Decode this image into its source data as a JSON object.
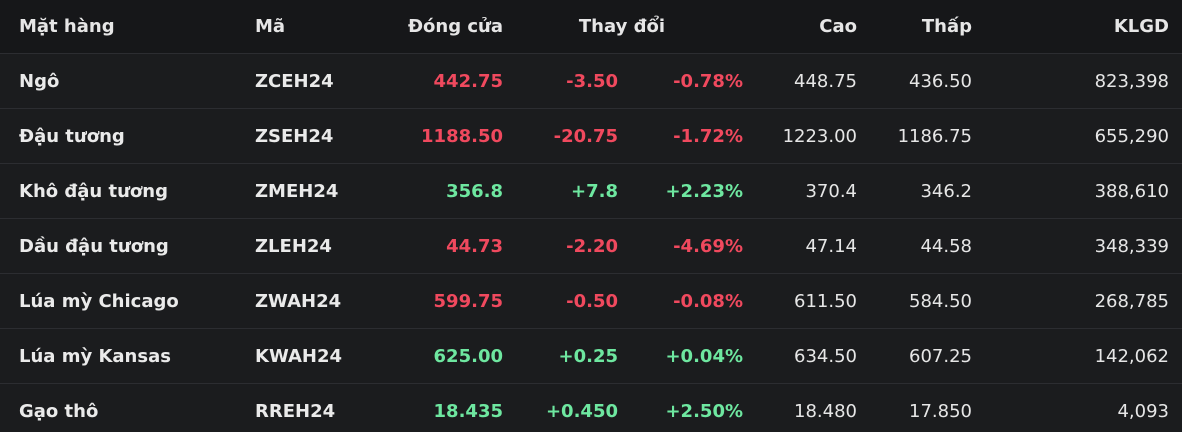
{
  "colors": {
    "up": "#6ee7a0",
    "down": "#f0495e",
    "background": "#1b1c1e",
    "header_background": "#161719"
  },
  "header": {
    "name": "Mặt hàng",
    "code": "Mã",
    "close": "Đóng cửa",
    "change": "Thay đổi",
    "high": "Cao",
    "low": "Thấp",
    "volume": "KLGD"
  },
  "rows": [
    {
      "name": "Ngô",
      "code": "ZCEH24",
      "close": "442.75",
      "chg": "-3.50",
      "pct": "-0.78%",
      "high": "448.75",
      "low": "436.50",
      "vol": "823,398",
      "dir": "down"
    },
    {
      "name": "Đậu tương",
      "code": "ZSEH24",
      "close": "1188.50",
      "chg": "-20.75",
      "pct": "-1.72%",
      "high": "1223.00",
      "low": "1186.75",
      "vol": "655,290",
      "dir": "down"
    },
    {
      "name": "Khô đậu tương",
      "code": "ZMEH24",
      "close": "356.8",
      "chg": "+7.8",
      "pct": "+2.23%",
      "high": "370.4",
      "low": "346.2",
      "vol": "388,610",
      "dir": "up"
    },
    {
      "name": "Dầu đậu tương",
      "code": "ZLEH24",
      "close": "44.73",
      "chg": "-2.20",
      "pct": "-4.69%",
      "high": "47.14",
      "low": "44.58",
      "vol": "348,339",
      "dir": "down"
    },
    {
      "name": "Lúa mỳ Chicago",
      "code": "ZWAH24",
      "close": "599.75",
      "chg": "-0.50",
      "pct": "-0.08%",
      "high": "611.50",
      "low": "584.50",
      "vol": "268,785",
      "dir": "down"
    },
    {
      "name": "Lúa mỳ Kansas",
      "code": "KWAH24",
      "close": "625.00",
      "chg": "+0.25",
      "pct": "+0.04%",
      "high": "634.50",
      "low": "607.25",
      "vol": "142,062",
      "dir": "up"
    },
    {
      "name": "Gạo thô",
      "code": "RREH24",
      "close": "18.435",
      "chg": "+0.450",
      "pct": "+2.50%",
      "high": "18.480",
      "low": "17.850",
      "vol": "4,093",
      "dir": "up"
    }
  ]
}
